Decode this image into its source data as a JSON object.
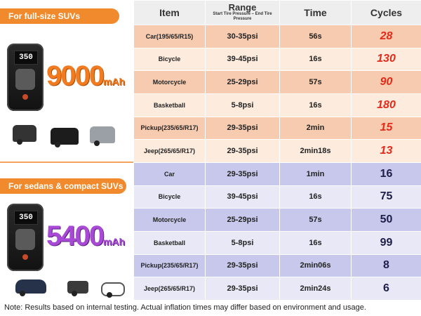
{
  "left": {
    "group_full_size": {
      "tag": "For full-size SUVs",
      "screen_text": "350",
      "capacity_value": "9000",
      "capacity_unit": "mAh",
      "vehicles": [
        "suv-icon",
        "pickup-icon",
        "suv-icon"
      ]
    },
    "group_compact": {
      "tag": "For sedans & compact SUVs",
      "screen_text": "350",
      "capacity_value": "5400",
      "capacity_unit": "mAh",
      "vehicles": [
        "sedan-icon",
        "motorcycle-icon",
        "bicycle-icon"
      ]
    }
  },
  "table": {
    "headers": {
      "item": "Item",
      "range": "Range",
      "range_sub": "Start Tire Pressure – End Tire Pressure",
      "time": "Time",
      "cycles": "Cycles"
    },
    "rows": [
      {
        "item": "Car(195/65/R15)",
        "range": "30-35psi",
        "time": "56s",
        "cycles": "28"
      },
      {
        "item": "Bicycle",
        "range": "39-45psi",
        "time": "16s",
        "cycles": "130"
      },
      {
        "item": "Motorcycle",
        "range": "25-29psi",
        "time": "57s",
        "cycles": "90"
      },
      {
        "item": "Basketball",
        "range": "5-8psi",
        "time": "16s",
        "cycles": "180"
      },
      {
        "item": "Pickup(235/65/R17)",
        "range": "29-35psi",
        "time": "2min",
        "cycles": "15"
      },
      {
        "item": "Jeep(265/65/R17)",
        "range": "29-35psi",
        "time": "2min18s",
        "cycles": "13"
      },
      {
        "item": "Car",
        "range": "29-35psi",
        "time": "1min",
        "cycles": "16"
      },
      {
        "item": "Bicycle",
        "range": "39-45psi",
        "time": "16s",
        "cycles": "75"
      },
      {
        "item": "Motorcycle",
        "range": "25-29psi",
        "time": "57s",
        "cycles": "50"
      },
      {
        "item": "Basketball",
        "range": "5-8psi",
        "time": "16s",
        "cycles": "99"
      },
      {
        "item": "Pickup(235/65/R17)",
        "range": "29-35psi",
        "time": "2min06s",
        "cycles": "8"
      },
      {
        "item": "Jeep(265/65/R17)",
        "range": "29-35psi",
        "time": "2min24s",
        "cycles": "6"
      }
    ]
  },
  "note": "Note: Results based on internal testing. Actual inflation times may differ based on environment and usage.",
  "colors": {
    "orange_accent": "#f08a2c",
    "purple_accent": "#a84ad6",
    "orange_row_dark": "#f7cbb0",
    "orange_row_light": "#fdebde",
    "purple_row_dark": "#c7c8ec",
    "purple_row_light": "#e8e8f6",
    "red_cycles": "#e32b1a"
  }
}
